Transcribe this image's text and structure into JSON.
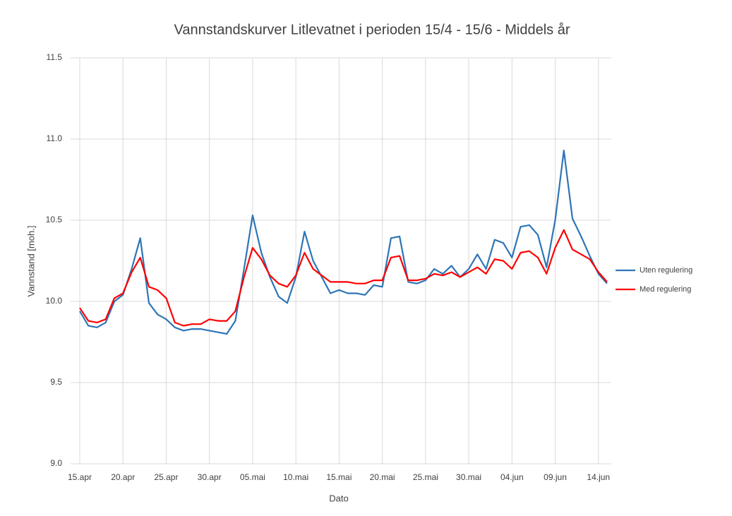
{
  "chart_data": {
    "type": "line",
    "title": "Vannstandskurver  Litlevatnet i perioden 15/4 - 15/6 - Middels år",
    "x_label": "Dato",
    "y_label": "Vannstand [moh.]",
    "categories": [
      "15.apr",
      null,
      null,
      null,
      null,
      "20.apr",
      null,
      null,
      null,
      null,
      "25.apr",
      null,
      null,
      null,
      null,
      "30.apr",
      null,
      null,
      null,
      null,
      "05.mai",
      null,
      null,
      null,
      null,
      "10.mai",
      null,
      null,
      null,
      null,
      "15.mai",
      null,
      null,
      null,
      null,
      "20.mai",
      null,
      null,
      null,
      null,
      "25.mai",
      null,
      null,
      null,
      null,
      "30.mai",
      null,
      null,
      null,
      null,
      "04.jun",
      null,
      null,
      null,
      null,
      "09.jun",
      null,
      null,
      null,
      null,
      "14.jun",
      null
    ],
    "series": [
      {
        "name": "Uten regulering",
        "color": "#2e75b6",
        "values": [
          9.94,
          9.85,
          9.84,
          9.87,
          10.0,
          10.04,
          10.2,
          10.39,
          9.99,
          9.92,
          9.89,
          9.84,
          9.82,
          9.83,
          9.83,
          9.82,
          9.81,
          9.8,
          9.88,
          10.2,
          10.53,
          10.3,
          10.15,
          10.03,
          9.99,
          10.15,
          10.43,
          10.25,
          10.15,
          10.05,
          10.07,
          10.05,
          10.05,
          10.04,
          10.1,
          10.09,
          10.39,
          10.4,
          10.12,
          10.11,
          10.13,
          10.2,
          10.17,
          10.22,
          10.15,
          10.2,
          10.29,
          10.2,
          10.38,
          10.36,
          10.27,
          10.46,
          10.47,
          10.41,
          10.21,
          10.5,
          10.93,
          10.51,
          10.4,
          10.28,
          10.17,
          10.11
        ]
      },
      {
        "name": "Med regulering",
        "color": "#ff0000",
        "values": [
          9.96,
          9.88,
          9.87,
          9.89,
          10.02,
          10.05,
          10.18,
          10.27,
          10.09,
          10.07,
          10.02,
          9.87,
          9.85,
          9.86,
          9.86,
          9.89,
          9.88,
          9.88,
          9.94,
          10.15,
          10.33,
          10.26,
          10.16,
          10.11,
          10.09,
          10.16,
          10.3,
          10.2,
          10.16,
          10.12,
          10.12,
          10.12,
          10.11,
          10.11,
          10.13,
          10.13,
          10.27,
          10.28,
          10.13,
          10.13,
          10.14,
          10.17,
          10.16,
          10.18,
          10.15,
          10.18,
          10.21,
          10.17,
          10.26,
          10.25,
          10.2,
          10.3,
          10.31,
          10.27,
          10.17,
          10.33,
          10.44,
          10.32,
          10.29,
          10.26,
          10.18,
          10.12
        ]
      }
    ],
    "ylim": [
      9.0,
      11.5
    ],
    "yticks": [
      {
        "value": 9,
        "label": "9.0"
      },
      9.5,
      {
        "value": 10,
        "label": "10.0"
      },
      10.5,
      {
        "value": 11,
        "label": "11.0"
      },
      11.5
    ],
    "grid": true,
    "legend": "right"
  }
}
